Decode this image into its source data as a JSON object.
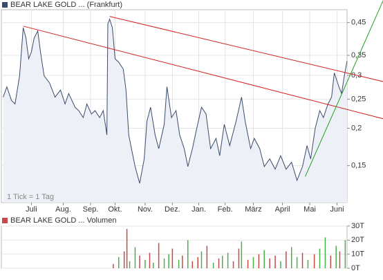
{
  "chart_data": [
    {
      "type": "line",
      "title": "BEAR LAKE GOLD ... (Frankfurt)",
      "annotation": "1 Tick = 1 Tag",
      "log_scale": true,
      "grid": true,
      "color": "#3a4a6a",
      "area_color": "#eef0f8",
      "xlim": [
        0,
        380
      ],
      "ylim": [
        0.113,
        0.497
      ],
      "xticks": [
        {
          "value": 33,
          "label": "Juli"
        },
        {
          "value": 68,
          "label": "Aug."
        },
        {
          "value": 98,
          "label": "Sep."
        },
        {
          "value": 125,
          "label": "Okt."
        },
        {
          "value": 158,
          "label": "Nov."
        },
        {
          "value": 188,
          "label": "Dez."
        },
        {
          "value": 217,
          "label": "Jan."
        },
        {
          "value": 246,
          "label": "Feb."
        },
        {
          "value": 277,
          "label": "März"
        },
        {
          "value": 309,
          "label": "April"
        },
        {
          "value": 339,
          "label": "Mai"
        },
        {
          "value": 369,
          "label": "Juni"
        }
      ],
      "yticks": [
        {
          "value": 0.15,
          "label": "0,15"
        },
        {
          "value": 0.2,
          "label": "0,2"
        },
        {
          "value": 0.25,
          "label": "0,25"
        },
        {
          "value": 0.3,
          "label": "0,3"
        },
        {
          "value": 0.35,
          "label": "0,35"
        },
        {
          "value": 0.45,
          "label": "0,45"
        }
      ],
      "x": [
        2,
        6,
        11,
        15,
        20,
        24,
        27,
        30,
        33,
        36,
        40,
        43,
        47,
        53,
        59,
        65,
        70,
        74,
        81,
        85,
        90,
        94,
        99,
        103,
        108,
        112,
        116,
        117,
        119,
        122,
        125,
        129,
        134,
        137,
        140,
        143,
        147,
        152,
        157,
        160,
        164,
        169,
        173,
        179,
        182,
        187,
        192,
        196,
        201,
        205,
        210,
        214,
        220,
        225,
        230,
        236,
        240,
        245,
        251,
        258,
        264,
        268,
        274,
        278,
        284,
        289,
        295,
        301,
        307,
        313,
        319,
        325,
        331,
        336,
        340,
        345,
        350,
        354,
        359,
        363,
        366,
        371,
        374,
        377,
        380
      ],
      "values": [
        0.254,
        0.275,
        0.248,
        0.241,
        0.299,
        0.433,
        0.4,
        0.341,
        0.359,
        0.4,
        0.422,
        0.359,
        0.299,
        0.283,
        0.254,
        0.268,
        0.241,
        0.261,
        0.235,
        0.229,
        0.217,
        0.241,
        0.223,
        0.229,
        0.217,
        0.229,
        0.19,
        0.445,
        0.462,
        0.433,
        0.341,
        0.332,
        0.315,
        0.268,
        0.19,
        0.171,
        0.149,
        0.131,
        0.158,
        0.211,
        0.235,
        0.19,
        0.171,
        0.206,
        0.275,
        0.217,
        0.229,
        0.19,
        0.171,
        0.149,
        0.171,
        0.195,
        0.235,
        0.223,
        0.171,
        0.185,
        0.162,
        0.206,
        0.175,
        0.211,
        0.254,
        0.211,
        0.171,
        0.185,
        0.171,
        0.149,
        0.158,
        0.146,
        0.162,
        0.146,
        0.154,
        0.134,
        0.149,
        0.175,
        0.158,
        0.2,
        0.229,
        0.217,
        0.241,
        0.254,
        0.306,
        0.275,
        0.261,
        0.299,
        0.335
      ],
      "trendlines": [
        {
          "color": "#d02020",
          "x": [
            119,
            420
          ],
          "values": [
            0.472,
            0.286
          ]
        },
        {
          "color": "#d02020",
          "x": [
            24,
            420
          ],
          "values": [
            0.438,
            0.215
          ]
        },
        {
          "color": "#20a020",
          "x": [
            334,
            420
          ],
          "values": [
            0.138,
            0.536
          ]
        }
      ]
    },
    {
      "type": "bar",
      "title": "BEAR LAKE GOLD ... Volumen",
      "grid": true,
      "xlim": [
        0,
        380
      ],
      "ylim": [
        0,
        30000
      ],
      "yticks": [
        {
          "value": 0,
          "label": "0T"
        },
        {
          "value": 10000,
          "label": "10T"
        },
        {
          "value": 20000,
          "label": "20T"
        },
        {
          "value": 30000,
          "label": "30T"
        }
      ],
      "x": [
        123,
        129,
        135,
        138,
        141,
        147,
        152,
        158,
        163,
        167,
        173,
        179,
        184,
        188,
        195,
        199,
        205,
        210,
        216,
        220,
        226,
        233,
        239,
        243,
        249,
        255,
        261,
        264,
        271,
        277,
        283,
        289,
        295,
        301,
        307,
        313,
        319,
        325,
        331,
        337,
        344,
        350,
        356,
        362,
        368,
        372,
        378
      ],
      "values": [
        3000,
        8000,
        12000,
        28000,
        5000,
        15000,
        9000,
        6000,
        11000,
        4000,
        18000,
        7000,
        10000,
        14000,
        6000,
        9000,
        20000,
        5000,
        8000,
        12000,
        16000,
        4000,
        7000,
        9000,
        11000,
        5000,
        14000,
        19000,
        6000,
        8000,
        10000,
        13000,
        7000,
        9000,
        5000,
        12000,
        15000,
        8000,
        11000,
        6000,
        10000,
        14000,
        22000,
        9000,
        16000,
        12000,
        20000
      ],
      "colors": [
        "#c84848",
        "#48b048",
        "#c84848",
        "#c84848",
        "#48b048",
        "#48b048",
        "#c84848",
        "#48b048",
        "#c84848",
        "#48b048",
        "#c84848",
        "#48b048",
        "#48b048",
        "#c84848",
        "#48b048",
        "#c84848",
        "#48b048",
        "#c84848",
        "#c84848",
        "#48b048",
        "#c84848",
        "#48b048",
        "#c84848",
        "#48b048",
        "#48b048",
        "#c84848",
        "#c84848",
        "#48b048",
        "#c84848",
        "#48b048",
        "#c84848",
        "#48b048",
        "#c84848",
        "#c84848",
        "#48b048",
        "#c84848",
        "#48b048",
        "#48b048",
        "#c84848",
        "#48b048",
        "#c84848",
        "#48b048",
        "#48b048",
        "#c84848",
        "#48b048",
        "#c84848",
        "#48b048"
      ]
    }
  ]
}
